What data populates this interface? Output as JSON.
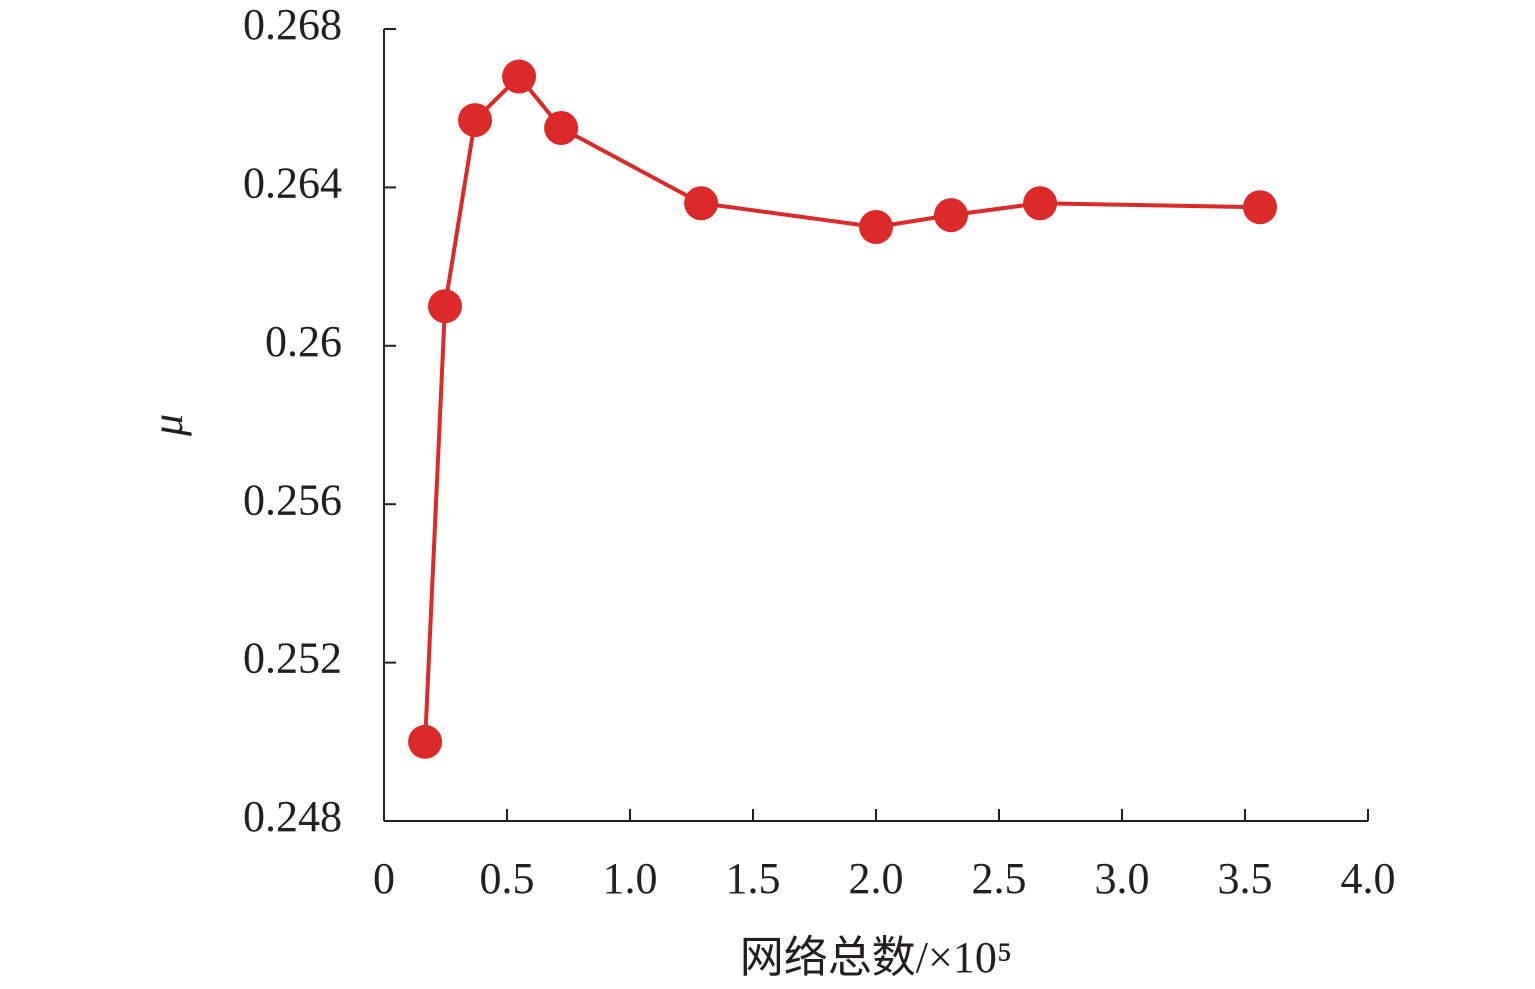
{
  "chart_data": {
    "type": "line",
    "x_label": "网络总数/×10⁵",
    "y_label": "μ",
    "series": [
      {
        "name": "μ",
        "color": "#dc2a2a",
        "x": [
          0.167,
          0.248,
          0.37,
          0.549,
          0.72,
          1.289,
          2.0,
          2.305,
          2.667,
          3.561
        ],
        "values": [
          0.25,
          0.261,
          0.2657,
          0.2668,
          0.2655,
          0.2636,
          0.263,
          0.2633,
          0.2636,
          0.2635
        ]
      }
    ],
    "xlim": [
      0,
      4
    ],
    "xticks": [
      0,
      0.5,
      {
        "value": 1,
        "label": "1.0"
      },
      1.5,
      {
        "value": 2,
        "label": "2.0"
      },
      2.5,
      {
        "value": 3,
        "label": "3.0"
      },
      3.5,
      {
        "value": 4,
        "label": "4.0"
      }
    ],
    "ylim": [
      0.248,
      0.268
    ],
    "yticks": [
      0.248,
      0.252,
      0.256,
      0.26,
      0.264,
      0.268
    ],
    "grid": false
  }
}
